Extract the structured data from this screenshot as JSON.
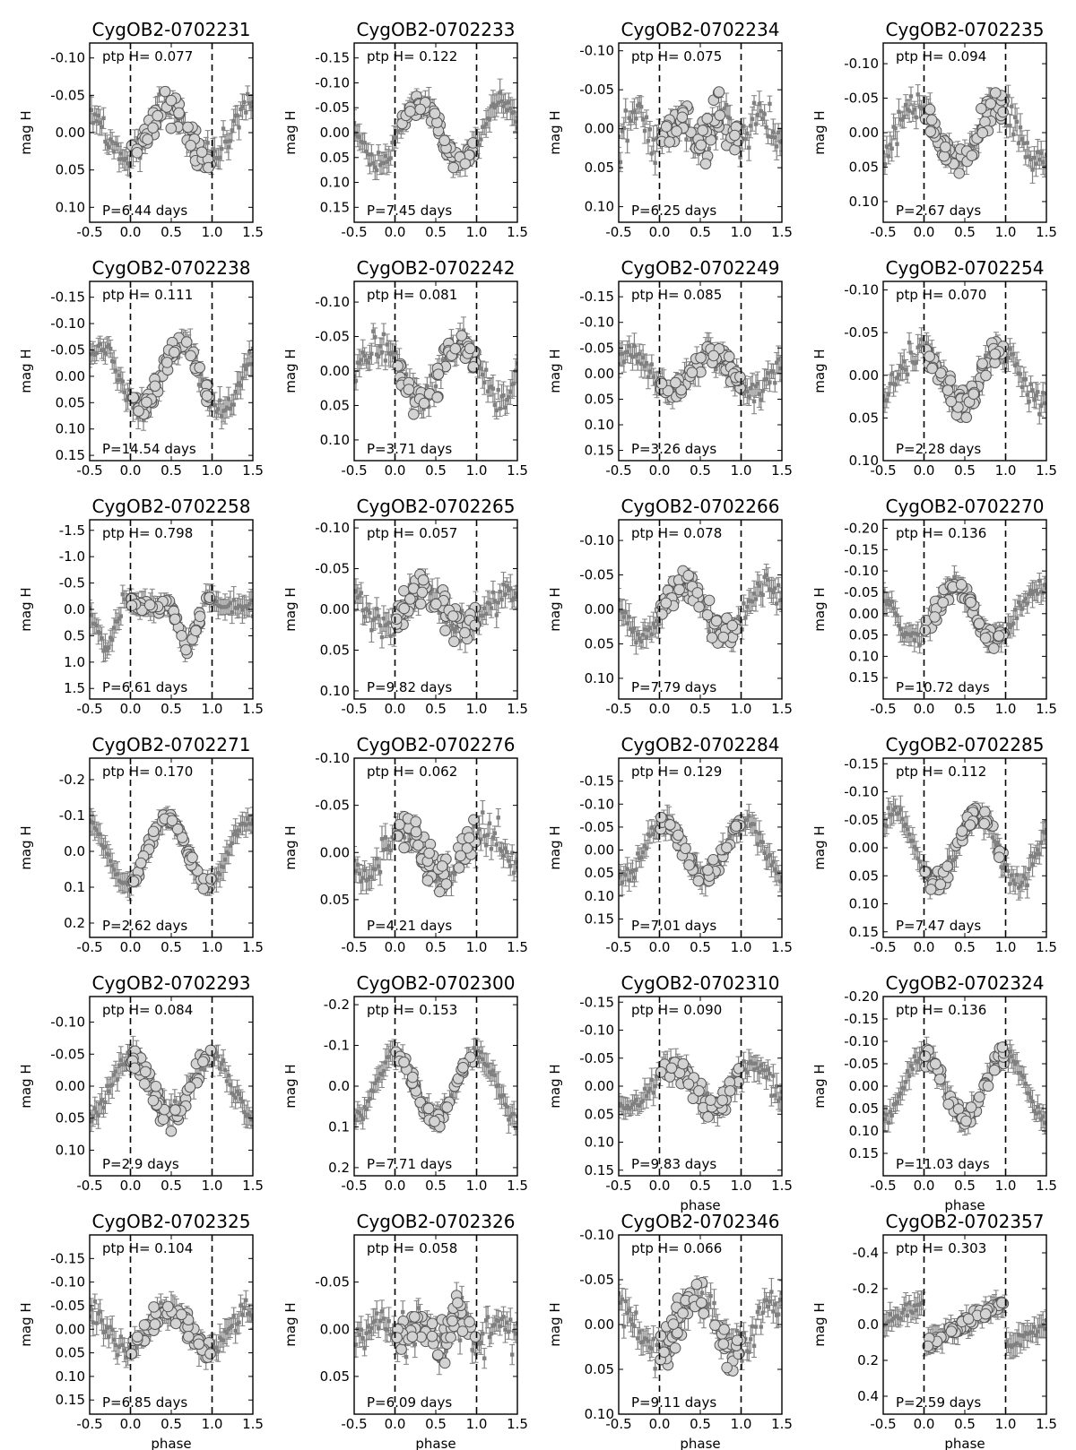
{
  "figure": {
    "xlabel": "phase",
    "ylabel": "mag H",
    "ptp_prefix": "ptp H=",
    "period_prefix": "P=",
    "period_suffix": " days",
    "colors": {
      "errorbar": "#808080",
      "marker_fill": "#d3d3d3",
      "marker_edge": "#555555",
      "axes": "#000000"
    }
  },
  "chart_data": [
    {
      "type": "scatter",
      "title": "CygOB2-0702231",
      "ptp": "0.077",
      "period": "6.44",
      "ylim": [
        0.12,
        -0.12
      ],
      "yticks": [
        "-0.10",
        "-0.05",
        "0.00",
        "0.05",
        "0.10"
      ],
      "ytick_values": [
        -0.1,
        -0.05,
        0.0,
        0.05,
        0.1
      ],
      "xlim": [
        -0.5,
        1.5
      ],
      "xticks": [
        "-0.5",
        "0.0",
        "0.5",
        "1.0",
        "1.5"
      ],
      "ylabel": "mag H",
      "xlabel": "",
      "shape": "bump",
      "amp": 0.038,
      "center": 0.45,
      "spread": 0.028
    },
    {
      "type": "scatter",
      "title": "CygOB2-0702233",
      "ptp": "0.122",
      "period": "7.45",
      "ylim": [
        0.18,
        -0.18
      ],
      "yticks": [
        "-0.15",
        "-0.10",
        "-0.05",
        "0.00",
        "0.05",
        "0.10",
        "0.15"
      ],
      "ytick_values": [
        -0.15,
        -0.1,
        -0.05,
        0.0,
        0.05,
        0.1,
        0.15
      ],
      "xlim": [
        -0.5,
        1.5
      ],
      "xticks": [
        "-0.5",
        "0.0",
        "0.5",
        "1.0",
        "1.5"
      ],
      "ylabel": "mag H",
      "xlabel": "",
      "shape": "sine",
      "amp": 0.06,
      "center": 0.3,
      "spread": 0.025
    },
    {
      "type": "scatter",
      "title": "CygOB2-0702234",
      "ptp": "0.075",
      "period": "6.25",
      "ylim": [
        0.12,
        -0.11
      ],
      "yticks": [
        "-0.10",
        "-0.05",
        "0.00",
        "0.05",
        "0.10"
      ],
      "ytick_values": [
        -0.1,
        -0.05,
        0.0,
        0.05,
        0.1
      ],
      "xlim": [
        -0.5,
        1.5
      ],
      "xticks": [
        "-0.5",
        "0.0",
        "0.5",
        "1.0",
        "1.5"
      ],
      "ylabel": "mag H",
      "xlabel": "",
      "shape": "double",
      "amp": 0.03,
      "center": 0.25,
      "spread": 0.035
    },
    {
      "type": "scatter",
      "title": "CygOB2-0702235",
      "ptp": "0.094",
      "period": "2.67",
      "ylim": [
        0.13,
        -0.13
      ],
      "yticks": [
        "-0.10",
        "-0.05",
        "0.00",
        "0.05",
        "0.10"
      ],
      "ytick_values": [
        -0.1,
        -0.05,
        0.0,
        0.05,
        0.1
      ],
      "xlim": [
        -0.5,
        1.5
      ],
      "xticks": [
        "-0.5",
        "0.0",
        "0.5",
        "1.0",
        "1.5"
      ],
      "ylabel": "mag H",
      "xlabel": "",
      "shape": "dip",
      "amp": 0.04,
      "center": 0.4,
      "spread": 0.03
    },
    {
      "type": "scatter",
      "title": "CygOB2-0702238",
      "ptp": "0.111",
      "period": "14.54",
      "ylim": [
        0.16,
        -0.18
      ],
      "yticks": [
        "-0.15",
        "-0.10",
        "-0.05",
        "0.00",
        "0.05",
        "0.10",
        "0.15"
      ],
      "ytick_values": [
        -0.15,
        -0.1,
        -0.05,
        0.0,
        0.05,
        0.1,
        0.15
      ],
      "xlim": [
        -0.5,
        1.5
      ],
      "xticks": [
        "-0.5",
        "0.0",
        "0.5",
        "1.0",
        "1.5"
      ],
      "ylabel": "mag H",
      "xlabel": "",
      "shape": "sine",
      "amp": 0.06,
      "center": 0.62,
      "spread": 0.03
    },
    {
      "type": "scatter",
      "title": "CygOB2-0702242",
      "ptp": "0.081",
      "period": "3.71",
      "ylim": [
        0.13,
        -0.13
      ],
      "yticks": [
        "-0.10",
        "-0.05",
        "0.00",
        "0.05",
        "0.10"
      ],
      "ytick_values": [
        -0.1,
        -0.05,
        0.0,
        0.05,
        0.1
      ],
      "xlim": [
        -0.5,
        1.5
      ],
      "xticks": [
        "-0.5",
        "0.0",
        "0.5",
        "1.0",
        "1.5"
      ],
      "ylabel": "mag H",
      "xlabel": "",
      "shape": "dip",
      "amp": 0.04,
      "center": 0.3,
      "spread": 0.03
    },
    {
      "type": "scatter",
      "title": "CygOB2-0702249",
      "ptp": "0.085",
      "period": "3.26",
      "ylim": [
        0.17,
        -0.18
      ],
      "yticks": [
        "-0.15",
        "-0.10",
        "-0.05",
        "0.00",
        "0.05",
        "0.10",
        "0.15"
      ],
      "ytick_values": [
        -0.15,
        -0.1,
        -0.05,
        0.0,
        0.05,
        0.1,
        0.15
      ],
      "xlim": [
        -0.5,
        1.5
      ],
      "xticks": [
        "-0.5",
        "0.0",
        "0.5",
        "1.0",
        "1.5"
      ],
      "ylabel": "mag H",
      "xlabel": "",
      "shape": "bump",
      "amp": 0.04,
      "center": 0.65,
      "spread": 0.03
    },
    {
      "type": "scatter",
      "title": "CygOB2-0702254",
      "ptp": "0.070",
      "period": "2.28",
      "ylim": [
        0.1,
        -0.11
      ],
      "yticks": [
        "-0.10",
        "-0.05",
        "0.00",
        "0.05",
        "0.10"
      ],
      "ytick_values": [
        -0.1,
        -0.05,
        0.0,
        0.05,
        0.1
      ],
      "xlim": [
        -0.5,
        1.5
      ],
      "xticks": [
        "-0.5",
        "0.0",
        "0.5",
        "1.0",
        "1.5"
      ],
      "ylabel": "mag H",
      "xlabel": "",
      "shape": "dip",
      "amp": 0.03,
      "center": 0.45,
      "spread": 0.025
    },
    {
      "type": "scatter",
      "title": "CygOB2-0702258",
      "ptp": "0.798",
      "period": "6.61",
      "ylim": [
        1.7,
        -1.7
      ],
      "yticks": [
        "-1.5",
        "-1.0",
        "-0.5",
        "0.0",
        "0.5",
        "1.0",
        "1.5"
      ],
      "ytick_values": [
        -1.5,
        -1.0,
        -0.5,
        0.0,
        0.5,
        1.0,
        1.5
      ],
      "xlim": [
        -0.5,
        1.5
      ],
      "xticks": [
        "-0.5",
        "0.0",
        "0.5",
        "1.0",
        "1.5"
      ],
      "ylabel": "mag H",
      "xlabel": "",
      "shape": "eclipse",
      "amp": 0.5,
      "center": 0.7,
      "spread": 0.15
    },
    {
      "type": "scatter",
      "title": "CygOB2-0702265",
      "ptp": "0.057",
      "period": "9.82",
      "ylim": [
        0.11,
        -0.11
      ],
      "yticks": [
        "-0.10",
        "-0.05",
        "0.00",
        "0.05",
        "0.10"
      ],
      "ytick_values": [
        -0.1,
        -0.05,
        0.0,
        0.05,
        0.1
      ],
      "xlim": [
        -0.5,
        1.5
      ],
      "xticks": [
        "-0.5",
        "0.0",
        "0.5",
        "1.0",
        "1.5"
      ],
      "ylabel": "mag H",
      "xlabel": "",
      "shape": "bump",
      "amp": 0.025,
      "center": 0.35,
      "spread": 0.025
    },
    {
      "type": "scatter",
      "title": "CygOB2-0702266",
      "ptp": "0.078",
      "period": "7.79",
      "ylim": [
        0.13,
        -0.13
      ],
      "yticks": [
        "-0.10",
        "-0.05",
        "0.00",
        "0.05",
        "0.10"
      ],
      "ytick_values": [
        -0.1,
        -0.05,
        0.0,
        0.05,
        0.1
      ],
      "xlim": [
        -0.5,
        1.5
      ],
      "xticks": [
        "-0.5",
        "0.0",
        "0.5",
        "1.0",
        "1.5"
      ],
      "ylabel": "mag H",
      "xlabel": "",
      "shape": "sine",
      "amp": 0.035,
      "center": 0.3,
      "spread": 0.025
    },
    {
      "type": "scatter",
      "title": "CygOB2-0702270",
      "ptp": "0.136",
      "period": "10.72",
      "ylim": [
        0.2,
        -0.22
      ],
      "yticks": [
        "-0.20",
        "-0.15",
        "-0.10",
        "-0.05",
        "0.00",
        "0.05",
        "0.10",
        "0.15"
      ],
      "ytick_values": [
        -0.2,
        -0.15,
        -0.1,
        -0.05,
        0.0,
        0.05,
        0.1,
        0.15
      ],
      "xlim": [
        -0.5,
        1.5
      ],
      "xticks": [
        "-0.5",
        "0.0",
        "0.5",
        "1.0",
        "1.5"
      ],
      "ylabel": "mag H",
      "xlabel": "",
      "shape": "bump",
      "amp": 0.07,
      "center": 0.38,
      "spread": 0.03
    },
    {
      "type": "scatter",
      "title": "CygOB2-0702271",
      "ptp": "0.170",
      "period": "2.62",
      "ylim": [
        0.24,
        -0.26
      ],
      "yticks": [
        "-0.2",
        "-0.1",
        "0.0",
        "0.1",
        "0.2"
      ],
      "ytick_values": [
        -0.2,
        -0.1,
        0.0,
        0.1,
        0.2
      ],
      "xlim": [
        -0.5,
        1.5
      ],
      "xticks": [
        "-0.5",
        "0.0",
        "0.5",
        "1.0",
        "1.5"
      ],
      "ylabel": "mag H",
      "xlabel": "",
      "shape": "sine",
      "amp": 0.09,
      "center": 0.45,
      "spread": 0.02
    },
    {
      "type": "scatter",
      "title": "CygOB2-0702276",
      "ptp": "0.062",
      "period": "4.21",
      "ylim": [
        0.09,
        -0.1
      ],
      "yticks": [
        "-0.10",
        "-0.05",
        "0.00",
        "0.05"
      ],
      "ytick_values": [
        -0.1,
        -0.05,
        0.0,
        0.05
      ],
      "xlim": [
        -0.5,
        1.5
      ],
      "xticks": [
        "-0.5",
        "0.0",
        "0.5",
        "1.0",
        "1.5"
      ],
      "ylabel": "mag H",
      "xlabel": "",
      "shape": "dip",
      "amp": 0.025,
      "center": 0.6,
      "spread": 0.025
    },
    {
      "type": "scatter",
      "title": "CygOB2-0702284",
      "ptp": "0.129",
      "period": "7.01",
      "ylim": [
        0.19,
        -0.2
      ],
      "yticks": [
        "-0.15",
        "-0.10",
        "-0.05",
        "0.00",
        "0.05",
        "0.10",
        "0.15"
      ],
      "ytick_values": [
        -0.15,
        -0.1,
        -0.05,
        0.0,
        0.05,
        0.1,
        0.15
      ],
      "xlim": [
        -0.5,
        1.5
      ],
      "xticks": [
        "-0.5",
        "0.0",
        "0.5",
        "1.0",
        "1.5"
      ],
      "ylabel": "mag H",
      "xlabel": "",
      "shape": "dip",
      "amp": 0.06,
      "center": 0.55,
      "spread": 0.025
    },
    {
      "type": "scatter",
      "title": "CygOB2-0702285",
      "ptp": "0.112",
      "period": "7.47",
      "ylim": [
        0.16,
        -0.16
      ],
      "yticks": [
        "-0.15",
        "-0.10",
        "-0.05",
        "0.00",
        "0.05",
        "0.10",
        "0.15"
      ],
      "ytick_values": [
        -0.15,
        -0.1,
        -0.05,
        0.0,
        0.05,
        0.1,
        0.15
      ],
      "xlim": [
        -0.5,
        1.5
      ],
      "xticks": [
        "-0.5",
        "0.0",
        "0.5",
        "1.0",
        "1.5"
      ],
      "ylabel": "mag H",
      "xlabel": "",
      "shape": "sine",
      "amp": 0.06,
      "center": 0.65,
      "spread": 0.025
    },
    {
      "type": "scatter",
      "title": "CygOB2-0702293",
      "ptp": "0.084",
      "period": "2.9",
      "ylim": [
        0.14,
        -0.14
      ],
      "yticks": [
        "-0.10",
        "-0.05",
        "0.00",
        "0.05",
        "0.10"
      ],
      "ytick_values": [
        -0.1,
        -0.05,
        0.0,
        0.05,
        0.1
      ],
      "xlim": [
        -0.5,
        1.5
      ],
      "xticks": [
        "-0.5",
        "0.0",
        "0.5",
        "1.0",
        "1.5"
      ],
      "ylabel": "mag H",
      "xlabel": "",
      "shape": "dip",
      "amp": 0.045,
      "center": 0.5,
      "spread": 0.025
    },
    {
      "type": "scatter",
      "title": "CygOB2-0702300",
      "ptp": "0.153",
      "period": "7.71",
      "ylim": [
        0.22,
        -0.22
      ],
      "yticks": [
        "-0.2",
        "-0.1",
        "0.0",
        "0.1",
        "0.2"
      ],
      "ytick_values": [
        -0.2,
        -0.1,
        0.0,
        0.1,
        0.2
      ],
      "xlim": [
        -0.5,
        1.5
      ],
      "xticks": [
        "-0.5",
        "0.0",
        "0.5",
        "1.0",
        "1.5"
      ],
      "ylabel": "mag H",
      "xlabel": "",
      "shape": "dip",
      "amp": 0.08,
      "center": 0.5,
      "spread": 0.025
    },
    {
      "type": "scatter",
      "title": "CygOB2-0702310",
      "ptp": "0.090",
      "period": "9.83",
      "ylim": [
        0.16,
        -0.16
      ],
      "yticks": [
        "-0.15",
        "-0.10",
        "-0.05",
        "0.00",
        "0.05",
        "0.10",
        "0.15"
      ],
      "ytick_values": [
        -0.15,
        -0.1,
        -0.05,
        0.0,
        0.05,
        0.1,
        0.15
      ],
      "xlim": [
        -0.5,
        1.5
      ],
      "xticks": [
        "-0.5",
        "0.0",
        "0.5",
        "1.0",
        "1.5"
      ],
      "ylabel": "mag H",
      "xlabel": "phase",
      "shape": "dip",
      "amp": 0.035,
      "center": 0.65,
      "spread": 0.03
    },
    {
      "type": "scatter",
      "title": "CygOB2-0702324",
      "ptp": "0.136",
      "period": "11.03",
      "ylim": [
        0.2,
        -0.2
      ],
      "yticks": [
        "-0.20",
        "-0.15",
        "-0.10",
        "-0.05",
        "0.00",
        "0.05",
        "0.10",
        "0.15"
      ],
      "ytick_values": [
        -0.2,
        -0.15,
        -0.1,
        -0.05,
        0.0,
        0.05,
        0.1,
        0.15
      ],
      "xlim": [
        -0.5,
        1.5
      ],
      "xticks": [
        "-0.5",
        "0.0",
        "0.5",
        "1.0",
        "1.5"
      ],
      "ylabel": "mag H",
      "xlabel": "phase",
      "shape": "dip",
      "amp": 0.07,
      "center": 0.5,
      "spread": 0.025
    },
    {
      "type": "scatter",
      "title": "CygOB2-0702325",
      "ptp": "0.104",
      "period": "6.85",
      "ylim": [
        0.18,
        -0.2
      ],
      "yticks": [
        "-0.15",
        "-0.10",
        "-0.05",
        "0.00",
        "0.05",
        "0.10",
        "0.15"
      ],
      "ytick_values": [
        -0.15,
        -0.1,
        -0.05,
        0.0,
        0.05,
        0.1,
        0.15
      ],
      "xlim": [
        -0.5,
        1.5
      ],
      "xticks": [
        "-0.5",
        "0.0",
        "0.5",
        "1.0",
        "1.5"
      ],
      "ylabel": "mag H",
      "xlabel": "phase",
      "shape": "bump",
      "amp": 0.045,
      "center": 0.45,
      "spread": 0.03
    },
    {
      "type": "scatter",
      "title": "CygOB2-0702326",
      "ptp": "0.058",
      "period": "6.09",
      "ylim": [
        0.09,
        -0.1
      ],
      "yticks": [
        "-0.05",
        "0.00",
        "0.05"
      ],
      "ytick_values": [
        -0.05,
        0.0,
        0.05
      ],
      "xlim": [
        -0.5,
        1.5
      ],
      "xticks": [
        "-0.5",
        "0.0",
        "0.5",
        "1.0",
        "1.5"
      ],
      "ylabel": "mag H",
      "xlabel": "phase",
      "shape": "double",
      "amp": 0.025,
      "center": 0.3,
      "spread": 0.03
    },
    {
      "type": "scatter",
      "title": "CygOB2-0702346",
      "ptp": "0.066",
      "period": "9.11",
      "ylim": [
        0.1,
        -0.1
      ],
      "yticks": [
        "-0.10",
        "-0.05",
        "0.00",
        "0.05",
        "0.10"
      ],
      "ytick_values": [
        -0.1,
        -0.05,
        0.0,
        0.05,
        0.1
      ],
      "xlim": [
        -0.5,
        1.5
      ],
      "xticks": [
        "-0.5",
        "0.0",
        "0.5",
        "1.0",
        "1.5"
      ],
      "ylabel": "mag H",
      "xlabel": "phase",
      "shape": "bump",
      "amp": 0.03,
      "center": 0.45,
      "spread": 0.03
    },
    {
      "type": "scatter",
      "title": "CygOB2-0702357",
      "ptp": "0.303",
      "period": "2.59",
      "ylim": [
        0.5,
        -0.5
      ],
      "yticks": [
        "-0.4",
        "-0.2",
        "0.0",
        "0.2",
        "0.4"
      ],
      "ytick_values": [
        -0.4,
        -0.2,
        0.0,
        0.2,
        0.4
      ],
      "xlim": [
        -0.5,
        1.5
      ],
      "xticks": [
        "-0.5",
        "0.0",
        "0.5",
        "1.0",
        "1.5"
      ],
      "ylabel": "mag H",
      "xlabel": "phase",
      "shape": "ramp",
      "amp": 0.15,
      "center": 0.9,
      "spread": 0.05
    }
  ]
}
